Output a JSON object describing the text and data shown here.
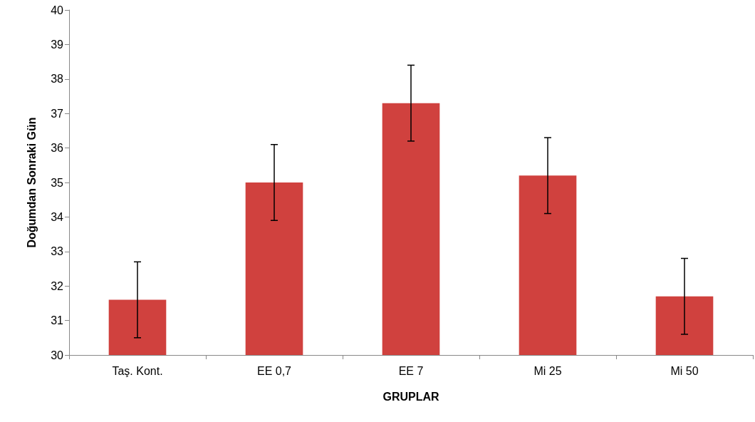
{
  "chart_data": {
    "type": "bar",
    "xlabel": "GRUPLAR",
    "ylabel": "Doğumdan Sonraki Gün",
    "categories": [
      "Taş. Kont.",
      "EE 0,7",
      "EE 7",
      "Mi 25",
      "Mi 50"
    ],
    "values": [
      31.6,
      35.0,
      37.3,
      35.2,
      31.7
    ],
    "errors": [
      1.1,
      1.1,
      1.1,
      1.1,
      1.1
    ],
    "color": "#d0413e",
    "ylim": [
      30,
      40
    ],
    "yticks": [
      30,
      31,
      32,
      33,
      34,
      35,
      36,
      37,
      38,
      39,
      40
    ],
    "grid": false
  }
}
